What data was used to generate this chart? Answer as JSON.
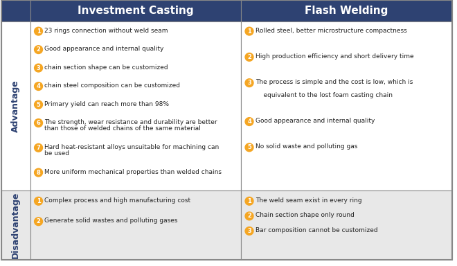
{
  "header_bg": "#2E4272",
  "header_text_color": "#FFFFFF",
  "advantage_bg": "#FFFFFF",
  "disadvantage_bg": "#E8E8E8",
  "row_label_color": "#2E4272",
  "orange_color": "#F5A623",
  "border_color": "#AAAAAA",
  "text_color": "#222222",
  "col1_header": "Investment Casting",
  "col2_header": "Flash Welding",
  "row1_label": "Advantage",
  "row2_label": "Disadvantage",
  "adv_col1": [
    "23 rings connection without weld seam",
    "Good appearance and internal quality",
    "chain section shape can be customized",
    "chain steel composition can be customized",
    "Primary yield can reach more than 98%",
    "The strength, wear resistance and durability are better\nthan those of welded chains of the same material",
    "Hard heat-resistant alloys unsuitable for machining can\nbe used",
    "More uniform mechanical properties than welded chains"
  ],
  "adv_col2": [
    "Rolled steel, better microstructure compactness",
    "High production efficiency and short delivery time",
    "The process is simple and the cost is low, which is\n\n    equivalent to the lost foam casting chain",
    "Good appearance and internal quality",
    "No solid waste and polluting gas"
  ],
  "dis_col1": [
    "Complex process and high manufacturing cost",
    "Generate solid wastes and polluting gases"
  ],
  "dis_col2": [
    "The weld seam exist in every ring",
    "Chain section shape only round",
    "Bar composition cannot be customized"
  ]
}
